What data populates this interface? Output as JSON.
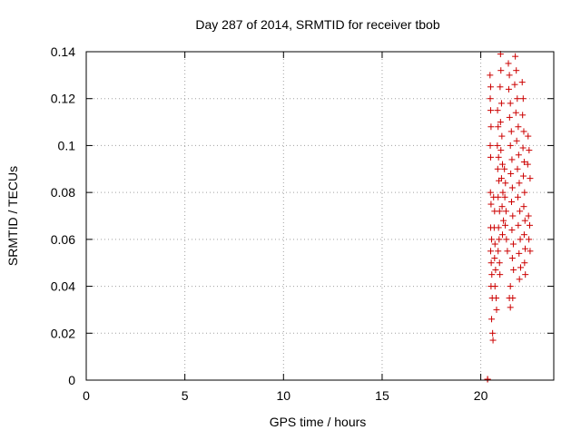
{
  "chart_data": {
    "type": "scatter",
    "title": "Day 287 of 2014, SRMTID for receiver tbob",
    "xlabel": "GPS time / hours",
    "ylabel": "SRMTID / TECUs",
    "xlim": [
      0,
      23.7
    ],
    "ylim": [
      0,
      0.14
    ],
    "grid": true,
    "marker": "plus",
    "color": "#cc0000",
    "x_ticks": [
      0,
      5,
      10,
      15,
      20
    ],
    "x_tick_labels": [
      "0",
      "5",
      "10",
      "15",
      "20"
    ],
    "y_ticks": [
      0,
      0.02,
      0.04,
      0.06,
      0.08,
      0.1,
      0.12,
      0.14
    ],
    "y_tick_labels": [
      "0",
      "0.02",
      "0.04",
      "0.06",
      "0.08",
      "0.1",
      "0.12",
      "0.14"
    ],
    "series": [
      {
        "name": "SRMTID",
        "points": [
          [
            20.34,
            0.0
          ],
          [
            20.35,
            0.0
          ],
          [
            20.47,
            0.13
          ],
          [
            20.5,
            0.125
          ],
          [
            20.48,
            0.12
          ],
          [
            20.5,
            0.115
          ],
          [
            20.52,
            0.108
          ],
          [
            20.48,
            0.1
          ],
          [
            20.5,
            0.095
          ],
          [
            20.49,
            0.08
          ],
          [
            20.52,
            0.075
          ],
          [
            20.5,
            0.065
          ],
          [
            20.55,
            0.06
          ],
          [
            20.5,
            0.055
          ],
          [
            20.53,
            0.05
          ],
          [
            20.56,
            0.045
          ],
          [
            20.52,
            0.04
          ],
          [
            20.58,
            0.035
          ],
          [
            20.55,
            0.026
          ],
          [
            20.6,
            0.02
          ],
          [
            20.62,
            0.017
          ],
          [
            20.65,
            0.078
          ],
          [
            20.7,
            0.072
          ],
          [
            20.68,
            0.065
          ],
          [
            20.72,
            0.058
          ],
          [
            20.7,
            0.052
          ],
          [
            20.75,
            0.047
          ],
          [
            20.72,
            0.04
          ],
          [
            20.78,
            0.035
          ],
          [
            20.8,
            0.03
          ],
          [
            20.85,
            0.115
          ],
          [
            20.88,
            0.108
          ],
          [
            20.84,
            0.1
          ],
          [
            20.9,
            0.095
          ],
          [
            20.86,
            0.09
          ],
          [
            20.92,
            0.085
          ],
          [
            20.88,
            0.078
          ],
          [
            20.95,
            0.072
          ],
          [
            20.9,
            0.065
          ],
          [
            20.93,
            0.06
          ],
          [
            20.88,
            0.055
          ],
          [
            20.95,
            0.05
          ],
          [
            20.97,
            0.045
          ],
          [
            21.0,
            0.139
          ],
          [
            21.02,
            0.132
          ],
          [
            20.98,
            0.125
          ],
          [
            21.05,
            0.118
          ],
          [
            21.0,
            0.11
          ],
          [
            21.07,
            0.104
          ],
          [
            21.02,
            0.098
          ],
          [
            21.1,
            0.092
          ],
          [
            21.05,
            0.086
          ],
          [
            21.12,
            0.08
          ],
          [
            21.08,
            0.074
          ],
          [
            21.15,
            0.068
          ],
          [
            21.1,
            0.062
          ],
          [
            21.2,
            0.09
          ],
          [
            21.25,
            0.084
          ],
          [
            21.22,
            0.078
          ],
          [
            21.28,
            0.072
          ],
          [
            21.24,
            0.066
          ],
          [
            21.3,
            0.06
          ],
          [
            21.35,
            0.055
          ],
          [
            21.4,
            0.135
          ],
          [
            21.45,
            0.13
          ],
          [
            21.42,
            0.124
          ],
          [
            21.5,
            0.118
          ],
          [
            21.46,
            0.112
          ],
          [
            21.55,
            0.106
          ],
          [
            21.5,
            0.1
          ],
          [
            21.58,
            0.094
          ],
          [
            21.52,
            0.088
          ],
          [
            21.6,
            0.082
          ],
          [
            21.56,
            0.076
          ],
          [
            21.62,
            0.07
          ],
          [
            21.58,
            0.064
          ],
          [
            21.65,
            0.058
          ],
          [
            21.6,
            0.052
          ],
          [
            21.66,
            0.047
          ],
          [
            21.5,
            0.04
          ],
          [
            21.45,
            0.035
          ],
          [
            21.62,
            0.035
          ],
          [
            21.5,
            0.031
          ],
          [
            21.75,
            0.138
          ],
          [
            21.8,
            0.132
          ],
          [
            21.72,
            0.126
          ],
          [
            21.85,
            0.12
          ],
          [
            21.78,
            0.114
          ],
          [
            21.9,
            0.108
          ],
          [
            21.82,
            0.102
          ],
          [
            21.92,
            0.096
          ],
          [
            21.86,
            0.09
          ],
          [
            21.95,
            0.084
          ],
          [
            21.88,
            0.078
          ],
          [
            21.98,
            0.072
          ],
          [
            21.9,
            0.066
          ],
          [
            22.0,
            0.06
          ],
          [
            21.94,
            0.054
          ],
          [
            22.02,
            0.048
          ],
          [
            21.96,
            0.043
          ],
          [
            22.1,
            0.127
          ],
          [
            22.15,
            0.12
          ],
          [
            22.12,
            0.113
          ],
          [
            22.18,
            0.106
          ],
          [
            22.14,
            0.099
          ],
          [
            22.2,
            0.093
          ],
          [
            22.16,
            0.087
          ],
          [
            22.22,
            0.08
          ],
          [
            22.18,
            0.074
          ],
          [
            22.24,
            0.068
          ],
          [
            22.2,
            0.062
          ],
          [
            22.25,
            0.056
          ],
          [
            22.22,
            0.05
          ],
          [
            22.26,
            0.045
          ],
          [
            22.4,
            0.104
          ],
          [
            22.45,
            0.098
          ],
          [
            22.38,
            0.092
          ],
          [
            22.5,
            0.086
          ],
          [
            22.42,
            0.07
          ],
          [
            22.48,
            0.066
          ],
          [
            22.44,
            0.06
          ],
          [
            22.5,
            0.055
          ]
        ]
      }
    ]
  }
}
